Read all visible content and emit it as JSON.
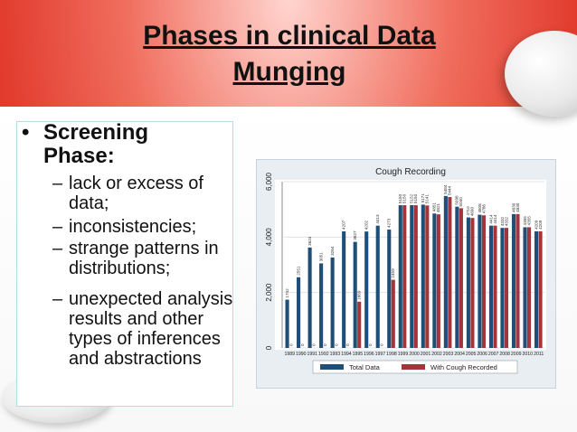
{
  "slide": {
    "title_line1": "Phases in clinical Data",
    "title_line2": "Munging",
    "bullet_symbol": "•",
    "dash_symbol": "–",
    "bullet_heading": "Screening Phase:",
    "sub_items": [
      "lack or excess of data;",
      "inconsistencies;",
      "strange patterns in distributions;",
      "unexpected analysis results and other types of inferences and abstractions"
    ],
    "colors": {
      "header_red": "#e23d2f",
      "bar_blue": "#1f4e79",
      "bar_red": "#a4333a"
    }
  },
  "chart_data": {
    "type": "bar",
    "title": "Cough Recording",
    "categories": [
      "1989",
      "1990",
      "1991",
      "1992",
      "1993",
      "1994",
      "1995",
      "1996",
      "1997",
      "1998",
      "1999",
      "2000",
      "2001",
      "2002",
      "2003",
      "2004",
      "2005",
      "2006",
      "2007",
      "2008",
      "2009",
      "2010",
      "2011"
    ],
    "series": [
      {
        "name": "Total Data",
        "color": "#1f4e79",
        "values": [
          1742,
          2551,
          3624,
          3051,
          3264,
          4207,
          3827,
          4202,
          4413,
          4273,
          5150,
          5152,
          5171,
          4851,
          5484,
          5098,
          4710,
          4808,
          4414,
          4332,
          4830,
          4355,
          4209
        ],
        "labels": [
          "1742",
          "2551",
          "3624",
          "3051",
          "3264",
          "4207",
          "3827",
          "4202",
          "4413",
          "4273",
          "5150",
          "5152",
          "5171",
          "4851",
          "5484",
          "5098",
          "4710",
          "4808",
          "4414",
          "4332",
          "4830",
          "4355",
          "4209"
        ]
      },
      {
        "name": "With Cough Recorded",
        "color": "#a4333a",
        "values": [
          0,
          0,
          0,
          0,
          0,
          0,
          1669,
          0,
          0,
          2459,
          5150,
          5150,
          5141,
          4821,
          5444,
          5040,
          4690,
          4786,
          4414,
          4332,
          4830,
          4355,
          4209
        ],
        "labels": [
          "0",
          "0",
          "0",
          "0",
          "0",
          "0",
          "1669",
          "0",
          "0",
          "2459",
          "5150",
          "5150",
          "5141",
          "4821",
          "5444",
          "5040",
          "4690",
          "4786",
          "4414",
          "4332",
          "4830",
          "4355",
          "4209"
        ]
      }
    ],
    "ylim": [
      0,
      6000
    ],
    "yticks": [
      "0",
      "2,000",
      "4,000",
      "6,000"
    ],
    "ytick_values": [
      0,
      2000,
      4000,
      6000
    ],
    "legend_position": "bottom",
    "grid": true
  }
}
